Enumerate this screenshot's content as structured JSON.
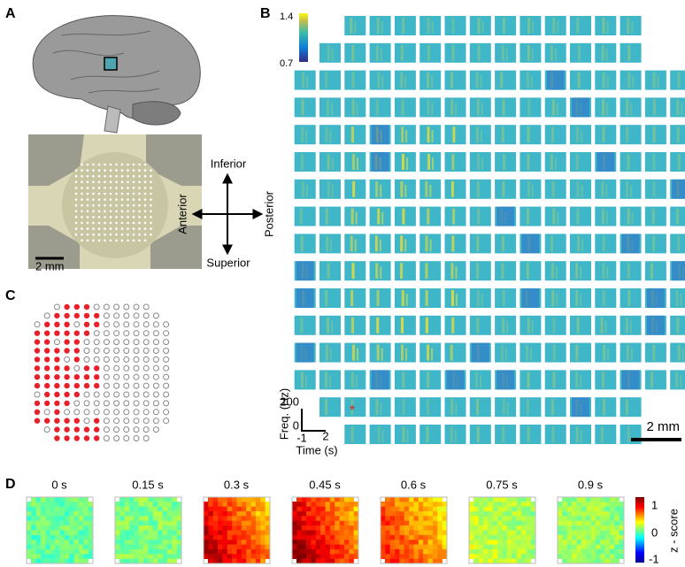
{
  "panel_a": {
    "label": "A",
    "scale_bar": "2 mm"
  },
  "orientation": {
    "top": "Inferior",
    "bottom": "Superior",
    "left": "Anterior",
    "right": "Posterior"
  },
  "panel_b": {
    "label": "B",
    "colorbar": {
      "max": "1.4",
      "min": "0.7"
    },
    "marker": "*",
    "axis": {
      "y_label": "Freq. (Hz)",
      "y_top": "200",
      "y_bottom": "0",
      "x_left": "-1",
      "x_right": "2",
      "x_label": "Time (s)"
    },
    "scale_bar": "2 mm"
  },
  "panel_c": {
    "label": "C"
  },
  "panel_d": {
    "label": "D",
    "times": [
      "0 s",
      "0.15 s",
      "0.3 s",
      "0.45 s",
      "0.6 s",
      "0.75 s",
      "0.9 s"
    ],
    "colorbar": {
      "max": "1",
      "mid": "0",
      "min": "-1",
      "label": "z - score"
    }
  }
}
